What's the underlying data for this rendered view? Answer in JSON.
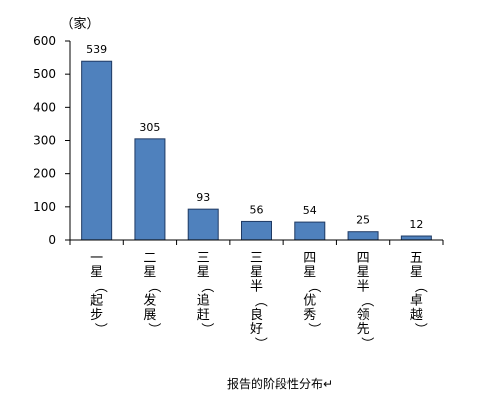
{
  "chart_data": {
    "type": "bar",
    "y_unit_label": "（家）",
    "caption": "报告的阶段性分布↵",
    "categories": [
      "一星（起步）",
      "二星（发展）",
      "三星（追赶）",
      "三星半（良好）",
      "四星（优秀）",
      "四星半（领先）",
      "五星（卓越）"
    ],
    "values": [
      539,
      305,
      93,
      56,
      54,
      25,
      12
    ],
    "data_labels": [
      "539",
      "305",
      "93",
      "56",
      "54",
      "25",
      "12"
    ],
    "ylim": [
      0,
      600
    ],
    "yticks": [
      0,
      100,
      200,
      300,
      400,
      500,
      600
    ],
    "grid": false,
    "legend": "none",
    "bar_color": "#4f81bd",
    "bar_edge_color": "#1f3a63"
  }
}
